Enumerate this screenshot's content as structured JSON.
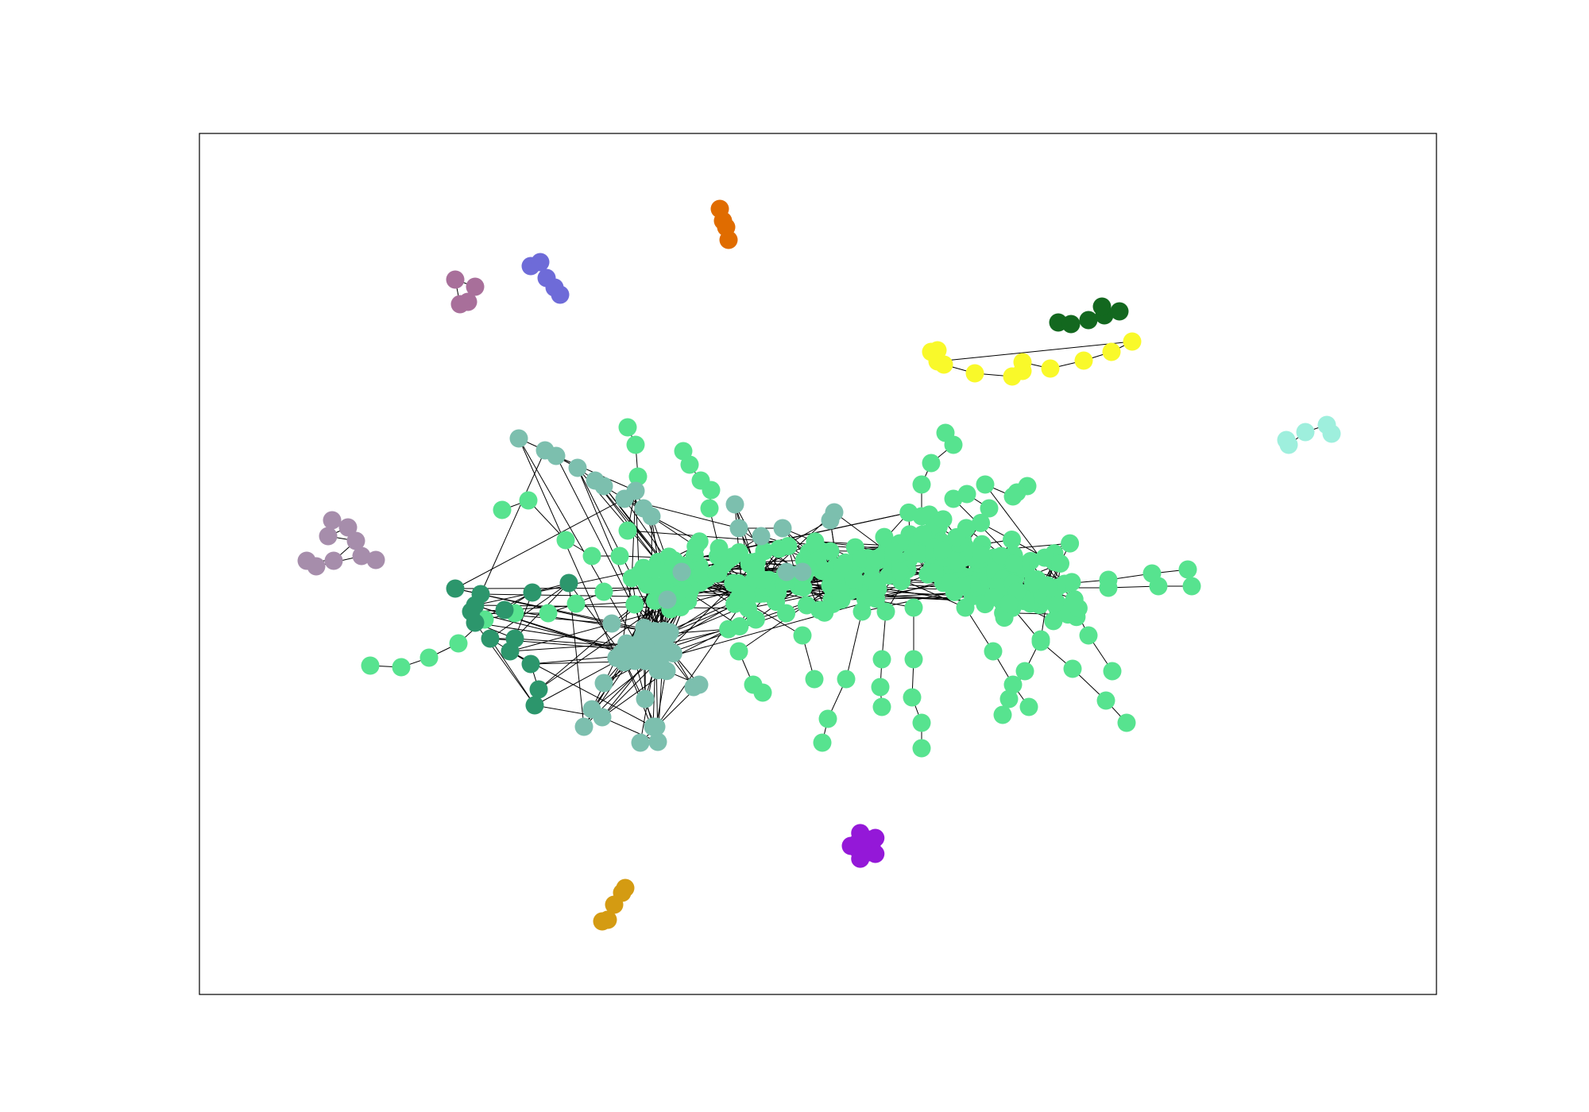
{
  "colors": {
    "edge": "#000000",
    "frame": "#000000",
    "background": "#ffffff"
  },
  "components": [
    {
      "id": "giant",
      "color": "#57e38f",
      "nodes": 360
    },
    {
      "id": "community-teal",
      "color": "#7cbfae",
      "nodes": 60
    },
    {
      "id": "community-dark-green",
      "color": "#2c966c",
      "nodes": 14
    },
    {
      "id": "isolated-orange",
      "color": "#e06c00",
      "nodes": 4
    },
    {
      "id": "isolated-blue",
      "color": "#6e6bd8",
      "nodes": 5
    },
    {
      "id": "isolated-mauve",
      "color": "#a86f9a",
      "nodes": 4
    },
    {
      "id": "isolated-forest",
      "color": "#13681f",
      "nodes": 6
    },
    {
      "id": "isolated-yellow",
      "color": "#f9f92a",
      "nodes": 12
    },
    {
      "id": "isolated-mint",
      "color": "#9eefdd",
      "nodes": 5
    },
    {
      "id": "isolated-lilac",
      "color": "#a68dab",
      "nodes": 9
    },
    {
      "id": "isolated-purple",
      "color": "#9418d8",
      "nodes": 10
    },
    {
      "id": "isolated-gold",
      "color": "#d49b12",
      "nodes": 5
    }
  ]
}
